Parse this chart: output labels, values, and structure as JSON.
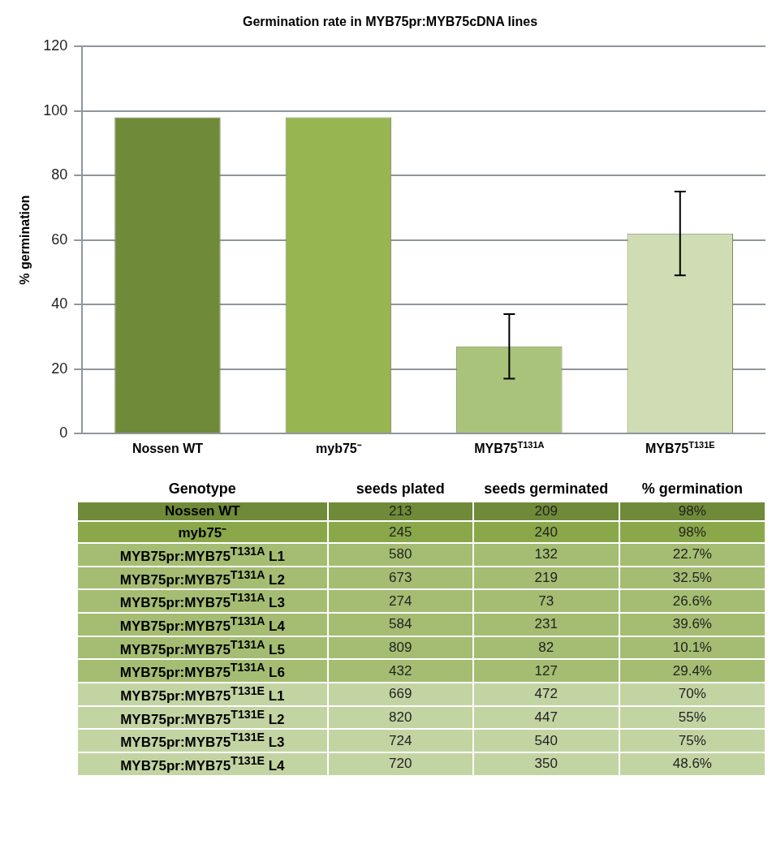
{
  "chart_data": [
    {
      "type": "bar",
      "title": "Germination rate in MYB75pr:MYB75cDNA lines",
      "ylabel": "% germination",
      "categories": [
        "Nossen WT",
        "myb75⁻",
        "MYB75$^{T131A}$",
        "MYB75$^{T131E}$"
      ],
      "values": [
        98,
        98,
        27,
        62
      ],
      "errors": [
        null,
        null,
        10,
        13
      ],
      "colors": [
        "#6f8a38",
        "#97b550",
        "#a9c47a",
        "#cfdcb4"
      ],
      "ylim": [
        0,
        120
      ],
      "yticks": [
        0,
        20,
        40,
        60,
        80,
        100,
        120
      ],
      "grid": "y",
      "legend": false
    },
    {
      "type": "other",
      "ylabel": "Genotype",
      "categories": [
        "seeds plated",
        "seeds germinated",
        "% germination"
      ],
      "y_categories": [
        "Nossen WT",
        "myb75⁻",
        "MYB75pr:MYB75$^{T131A}$ L1",
        "MYB75pr:MYB75$^{T131A}$ L2",
        "MYB75pr:MYB75$^{T131A}$ L3",
        "MYB75pr:MYB75$^{T131A}$ L4",
        "MYB75pr:MYB75$^{T131A}$ L5",
        "MYB75pr:MYB75$^{T131A}$ L6",
        "MYB75pr:MYB75$^{T131E}$ L1",
        "MYB75pr:MYB75$^{T131E}$ L2",
        "MYB75pr:MYB75$^{T131E}$ L3",
        "MYB75pr:MYB75$^{T131E}$ L4"
      ],
      "cell_labels": [
        [
          "213",
          "209",
          "98%"
        ],
        [
          "245",
          "240",
          "98%"
        ],
        [
          "580",
          "132",
          "22.7%"
        ],
        [
          "673",
          "219",
          "32.5%"
        ],
        [
          "274",
          "73",
          "26.6%"
        ],
        [
          "584",
          "231",
          "39.6%"
        ],
        [
          "809",
          "82",
          "10.1%"
        ],
        [
          "432",
          "127",
          "29.4%"
        ],
        [
          "669",
          "472",
          "70%"
        ],
        [
          "820",
          "447",
          "55%"
        ],
        [
          "724",
          "540",
          "75%"
        ],
        [
          "720",
          "350",
          "48.6%"
        ]
      ],
      "colors": [
        "#6f8a38",
        "#8aa84a",
        "#a4bd72",
        "#a4bd72",
        "#a4bd72",
        "#a4bd72",
        "#a4bd72",
        "#a4bd72",
        "#c3d4a3",
        "#c3d4a3",
        "#c3d4a3",
        "#c3d4a3"
      ]
    }
  ]
}
